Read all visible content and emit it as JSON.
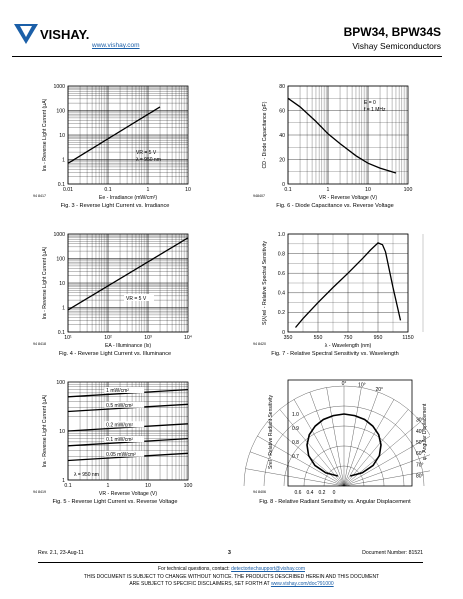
{
  "header": {
    "brand": "VISHAY.",
    "url": "www.vishay.com",
    "title": "BPW34, BPW34S",
    "subtitle": "Vishay Semiconductors"
  },
  "figures": [
    {
      "caption": "Fig. 3 - Reverse Light Current vs. Irradiance",
      "code": "94 8417"
    },
    {
      "caption": "Fig. 6 - Diode Capacitance vs. Reverse Voltage",
      "code": "948407"
    },
    {
      "caption": "Fig. 4 - Reverse Light Current vs. Illuminance",
      "code": "94 8418"
    },
    {
      "caption": "Fig. 7 - Relative Spectral Sensitivity vs. Wavelength",
      "code": "94 8420"
    },
    {
      "caption": "Fig. 5 - Reverse Light Current vs. Reverse Voltage",
      "code": "94 8419"
    },
    {
      "caption": "Fig. 8 - Relative Radiant Sensitivity vs. Angular Displacement",
      "code": "94 8406"
    }
  ],
  "chart_data": [
    {
      "type": "line",
      "xlabel": "Ee - Irradiance (mW/cm²)",
      "ylabel": "Ira - Reverse Light Current (µA)",
      "xscale": "log",
      "yscale": "log",
      "xlim": [
        0.01,
        10
      ],
      "ylim": [
        0.1,
        1000
      ],
      "xticks": [
        "0.01",
        "0.1",
        "1",
        "10"
      ],
      "yticks": [
        "0.1",
        "1",
        "10",
        "100",
        "1000"
      ],
      "annotations": [
        "VR = 5 V",
        "λ = 950 nm"
      ],
      "x": [
        0.01,
        2
      ],
      "y": [
        0.7,
        140
      ]
    },
    {
      "type": "line",
      "xlabel": "VR - Reverse Voltage (V)",
      "ylabel": "CD - Diode Capacitance (pF)",
      "xscale": "log",
      "xlim": [
        0.1,
        100
      ],
      "ylim": [
        0,
        80
      ],
      "xticks": [
        "0.1",
        "1",
        "10",
        "100"
      ],
      "yticks": [
        "0",
        "20",
        "40",
        "60",
        "80"
      ],
      "annotations": [
        "E = 0",
        "f = 1 MHz"
      ],
      "x": [
        0.1,
        0.2,
        0.5,
        1,
        2,
        5,
        10,
        20,
        50
      ],
      "y": [
        70,
        63,
        51,
        41,
        33,
        23,
        17,
        13,
        9
      ]
    },
    {
      "type": "line",
      "xlabel": "EA - Illuminance (lx)",
      "ylabel": "Ira - Reverse Light Current (µA)",
      "xscale": "log",
      "yscale": "log",
      "xlim": [
        10,
        10000
      ],
      "ylim": [
        0.1,
        1000
      ],
      "xticks": [
        "10¹",
        "10²",
        "10³",
        "10⁴"
      ],
      "yticks": [
        "0.1",
        "1",
        "10",
        "100",
        "1000"
      ],
      "annotations": [
        "VR = 5 V"
      ],
      "x": [
        10,
        10000
      ],
      "y": [
        0.8,
        700
      ]
    },
    {
      "type": "line",
      "xlabel": "λ - Wavelength (nm)",
      "ylabel": "S(λ)rel - Relative Spectral Sensitivity",
      "xlim": [
        350,
        1150
      ],
      "ylim": [
        0,
        1.1
      ],
      "xticks": [
        "350",
        "550",
        "750",
        "950",
        "1150"
      ],
      "yticks": [
        "0",
        "0.2",
        "0.4",
        "0.6",
        "0.8",
        "1.0"
      ],
      "x": [
        400,
        450,
        550,
        650,
        750,
        850,
        900,
        950,
        980,
        1000,
        1050,
        1100
      ],
      "y": [
        0.05,
        0.15,
        0.33,
        0.5,
        0.66,
        0.83,
        0.92,
        1.0,
        0.98,
        0.9,
        0.5,
        0.13
      ]
    },
    {
      "type": "line",
      "xlabel": "VR - Reverse Voltage (V)",
      "ylabel": "Ira - Reverse Light Current (µA)",
      "xscale": "log",
      "yscale": "log",
      "xlim": [
        0.1,
        100
      ],
      "ylim": [
        1,
        100
      ],
      "xticks": [
        "0.1",
        "1",
        "10",
        "100"
      ],
      "yticks": [
        "1",
        "10",
        "100"
      ],
      "annotations": [
        "λ = 950 nm"
      ],
      "series": [
        {
          "name": "1 mW/cm²",
          "x": [
            0.1,
            100
          ],
          "y": [
            50,
            70
          ]
        },
        {
          "name": "0.5 mW/cm²",
          "x": [
            0.1,
            100
          ],
          "y": [
            25,
            35
          ]
        },
        {
          "name": "0.2 mW/cm²",
          "x": [
            0.1,
            100
          ],
          "y": [
            10,
            14
          ]
        },
        {
          "name": "0.1 mW/cm²",
          "x": [
            0.1,
            100
          ],
          "y": [
            5,
            7
          ]
        },
        {
          "name": "0.05 mW/cm²",
          "x": [
            0.1,
            100
          ],
          "y": [
            2.5,
            3.5
          ]
        }
      ]
    },
    {
      "type": "line",
      "ylabel": "Srel - Relative Radiant Sensitivity",
      "ylabel2": "φ - Angular Displacement",
      "angles": [
        "0°",
        "10°",
        "20°",
        "30°",
        "40°",
        "50°",
        "60°",
        "70°",
        "80°"
      ],
      "radial_ticks": [
        "1.0",
        "0.9",
        "0.8",
        "0.7"
      ],
      "bottom_ticks": [
        "0.6",
        "0.4",
        "0.2",
        "0"
      ],
      "x": [
        0,
        10,
        20,
        30,
        40,
        50,
        60,
        70,
        80,
        90
      ],
      "y": [
        1.0,
        0.99,
        0.97,
        0.93,
        0.87,
        0.78,
        0.66,
        0.5,
        0.3,
        0.1
      ]
    }
  ],
  "footer": {
    "rev": "Rev. 2.1, 23-Aug-11",
    "page": "3",
    "doc": "Document Number: 81521",
    "tech": "For technical questions, contact:",
    "tech_email": "detectortechsupport@vishay.com",
    "notice1": "THIS DOCUMENT IS SUBJECT TO CHANGE WITHOUT NOTICE. THE PRODUCTS DESCRIBED HEREIN AND THIS DOCUMENT",
    "notice2": "ARE SUBJECT TO SPECIFIC DISCLAIMERS, SET FORTH AT",
    "notice_link": "www.vishay.com/doc?91000"
  }
}
